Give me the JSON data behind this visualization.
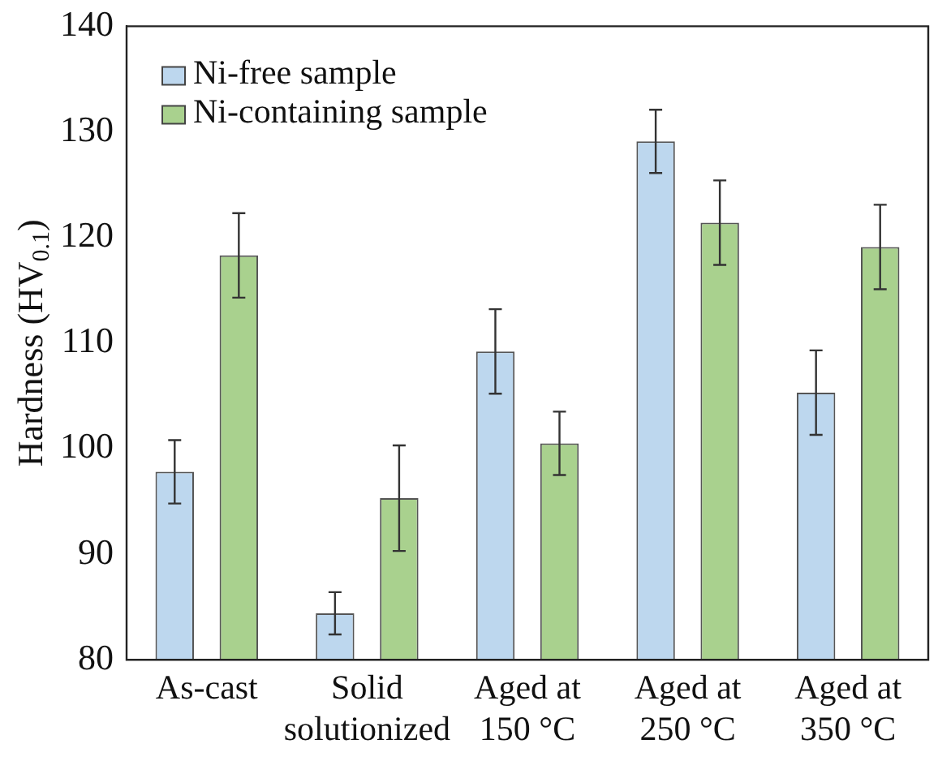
{
  "chart_data": {
    "type": "bar",
    "ylabel": "Hardness (HV$_{0.1}$)",
    "categories": [
      "As-cast",
      "Solid solutionized",
      "Aged at 150 °C",
      "Aged at 250 °C",
      "Aged at 350 °C"
    ],
    "series": [
      {
        "name": "Ni-free sample",
        "color": "#bdd7ee",
        "values": [
          97.8,
          84.4,
          109.2,
          129.1,
          105.3
        ],
        "errors": [
          3,
          2,
          4,
          3,
          4
        ]
      },
      {
        "name": "Ni-containing sample",
        "color": "#a9d18e",
        "values": [
          118.3,
          95.3,
          100.5,
          121.4,
          119.1
        ],
        "errors": [
          4,
          5,
          3,
          4,
          4
        ]
      }
    ],
    "ylim": [
      80,
      140
    ],
    "yticks": [
      80,
      90,
      100,
      110,
      120,
      130,
      140
    ],
    "grid": false,
    "legend": "top left"
  }
}
